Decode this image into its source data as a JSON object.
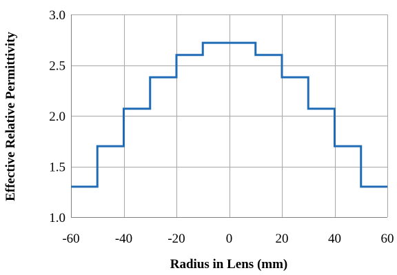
{
  "chart_data": {
    "type": "line",
    "step": true,
    "xlabel": "Radius in Lens (mm)",
    "ylabel": "Effective Relative Permittivity",
    "xlim": [
      -60,
      60
    ],
    "ylim": [
      1.0,
      3.0
    ],
    "xticks": [
      "-60",
      "-40",
      "-20",
      "0",
      "20",
      "40",
      "60"
    ],
    "yticks": [
      "1.0",
      "1.5",
      "2.0",
      "2.5",
      "3.0"
    ],
    "grid": true,
    "legend": "none",
    "series": [
      {
        "color": "#1f6bb5",
        "points": [
          [
            -60,
            1.3
          ],
          [
            -50,
            1.3
          ],
          [
            -50,
            1.7
          ],
          [
            -40,
            1.7
          ],
          [
            -40,
            2.07
          ],
          [
            -30,
            2.07
          ],
          [
            -30,
            2.38
          ],
          [
            -20,
            2.38
          ],
          [
            -20,
            2.6
          ],
          [
            -10,
            2.6
          ],
          [
            -10,
            2.72
          ],
          [
            10,
            2.72
          ],
          [
            10,
            2.6
          ],
          [
            20,
            2.6
          ],
          [
            20,
            2.38
          ],
          [
            30,
            2.38
          ],
          [
            30,
            2.07
          ],
          [
            40,
            2.07
          ],
          [
            40,
            1.7
          ],
          [
            50,
            1.7
          ],
          [
            50,
            1.3
          ],
          [
            60,
            1.3
          ]
        ]
      }
    ]
  }
}
